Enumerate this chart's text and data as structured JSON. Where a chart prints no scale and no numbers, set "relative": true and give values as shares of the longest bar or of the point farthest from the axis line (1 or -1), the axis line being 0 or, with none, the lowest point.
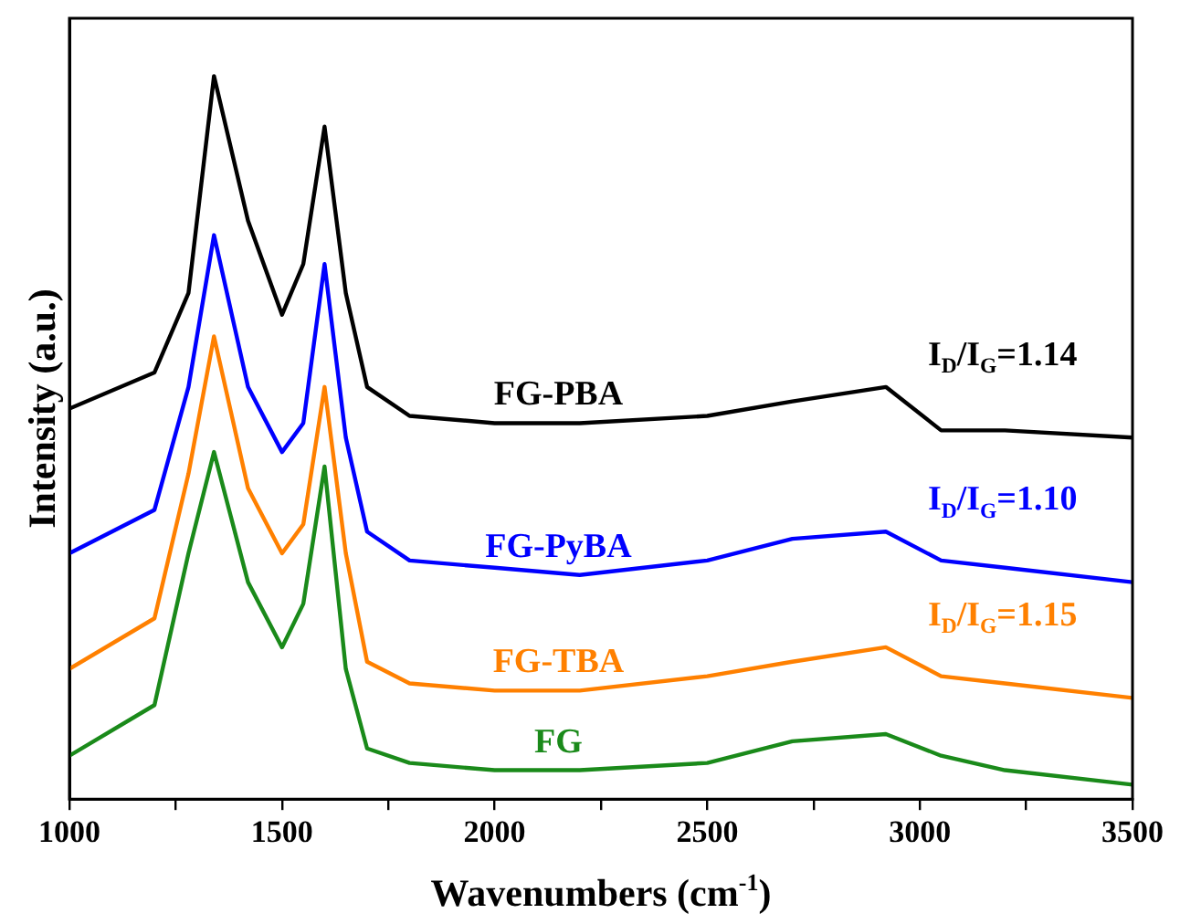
{
  "chart_data": {
    "type": "line",
    "relative": true,
    "xlabel": "Wavenumbers (cm$^{-1}$)",
    "ylabel": "Intensity (a.u.)",
    "xlim": [
      1000,
      3500
    ],
    "xticks": [
      1000,
      {
        "value": 1250,
        "label": null
      },
      1500,
      {
        "value": 1750,
        "label": null
      },
      2000,
      {
        "value": 2250,
        "label": null
      },
      2500,
      {
        "value": 2750,
        "label": null
      },
      3000,
      {
        "value": 3250,
        "label": null
      },
      3500
    ],
    "x": [
      1000,
      1200,
      1280,
      1340,
      1420,
      1500,
      1550,
      1600,
      1650,
      1700,
      1800,
      2000,
      2200,
      2500,
      2700,
      2920,
      3050,
      3200,
      3500
    ],
    "grid": false,
    "legend": false,
    "marker": "none",
    "line_style": "solid",
    "series": [
      {
        "name": "FG-PBA",
        "color": "#000000",
        "values": [
          0.54,
          0.59,
          0.7,
          1.0,
          0.8,
          0.67,
          0.74,
          0.93,
          0.7,
          0.57,
          0.53,
          0.52,
          0.52,
          0.53,
          0.55,
          0.57,
          0.51,
          0.51,
          0.5
        ]
      },
      {
        "name": "FG-PyBA",
        "color": "#0000ff",
        "values": [
          0.34,
          0.4,
          0.57,
          0.78,
          0.57,
          0.48,
          0.52,
          0.74,
          0.5,
          0.37,
          0.33,
          0.32,
          0.31,
          0.33,
          0.36,
          0.37,
          0.33,
          0.32,
          0.3
        ]
      },
      {
        "name": "FG-TBA",
        "color": "#ff8000",
        "values": [
          0.18,
          0.25,
          0.45,
          0.64,
          0.43,
          0.34,
          0.38,
          0.57,
          0.34,
          0.19,
          0.16,
          0.15,
          0.15,
          0.17,
          0.19,
          0.21,
          0.17,
          0.16,
          0.14
        ]
      },
      {
        "name": "FG",
        "color": "#1a8a1a",
        "values": [
          0.06,
          0.13,
          0.34,
          0.48,
          0.3,
          0.21,
          0.27,
          0.46,
          0.18,
          0.07,
          0.05,
          0.04,
          0.04,
          0.05,
          0.08,
          0.09,
          0.06,
          0.04,
          0.02
        ]
      }
    ],
    "annotations": [
      "I$_{D}$/I$_{G}$=1.14",
      "I$_{D}$/I$_{G}$=1.10",
      "I$_{D}$/I$_{G}$=1.15"
    ]
  }
}
